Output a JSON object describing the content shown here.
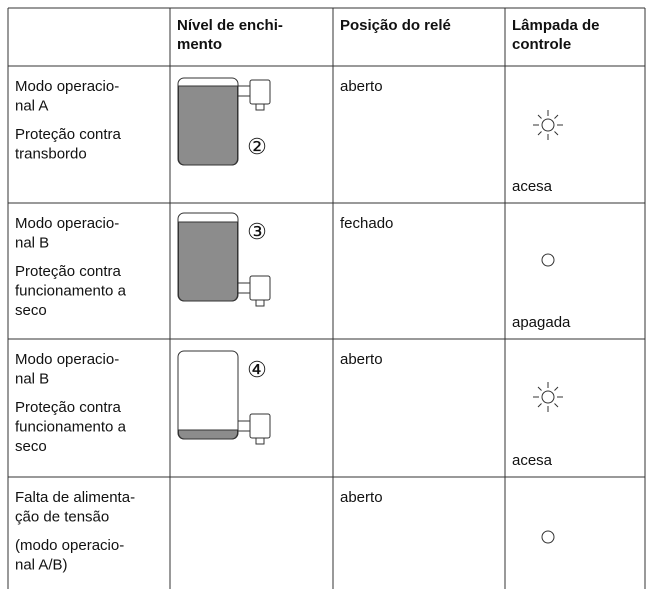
{
  "header": {
    "level": [
      "Nível de enchi-",
      "mento"
    ],
    "relay": [
      "Posição do relé"
    ],
    "lamp": [
      "Lâmpada de",
      "controle"
    ]
  },
  "rows": [
    {
      "description": [
        [
          "Modo operacio-",
          "nal A"
        ],
        [
          "Proteção contra",
          "transbordo"
        ]
      ],
      "level_marker": "②",
      "relay": "aberto",
      "lamp": "acesa"
    },
    {
      "description": [
        [
          "Modo operacio-",
          "nal B"
        ],
        [
          "Proteção contra",
          "funcionamento a",
          "seco"
        ]
      ],
      "level_marker": "③",
      "relay": "fechado",
      "lamp": "apagada"
    },
    {
      "description": [
        [
          "Modo operacio-",
          "nal B"
        ],
        [
          "Proteção contra",
          "funcionamento a",
          "seco"
        ]
      ],
      "level_marker": "④",
      "relay": "aberto",
      "lamp": "acesa"
    },
    {
      "description": [
        [
          "Falta de alimenta-",
          "ção de tensão"
        ],
        [
          "(modo operacio-",
          "nal A/B)"
        ]
      ],
      "relay": "aberto"
    }
  ]
}
